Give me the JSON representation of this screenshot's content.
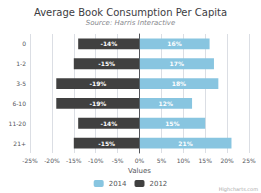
{
  "chart_data": {
    "type": "bar",
    "orientation": "horizontal",
    "title": "Average Book Consumption Per Capita",
    "subtitle": "Source: Harris Interactive",
    "xlabel": "Values",
    "annotation": "Highcharts.com",
    "categories": [
      "0",
      "1-2",
      "3-5",
      "6-10",
      "11-20",
      "21+"
    ],
    "series": [
      {
        "name": "2014",
        "color": "#88c5e0",
        "values": [
          16,
          17,
          18,
          12,
          15,
          21
        ],
        "value_labels": [
          "16%",
          "17%",
          "18%",
          "12%",
          "15%",
          "21%"
        ]
      },
      {
        "name": "2012",
        "color": "#404040",
        "values": [
          -14,
          -15,
          -19,
          -19,
          -14,
          -15
        ],
        "value_labels": [
          "-14%",
          "-15%",
          "-19%",
          "-19%",
          "-14%",
          "-15%"
        ]
      }
    ],
    "xlim": [
      -25,
      25
    ],
    "xticks": [
      {
        "value": -25,
        "label": "-25%"
      },
      {
        "value": -20,
        "label": "-20%"
      },
      {
        "value": -15,
        "label": "-15%"
      },
      {
        "value": -10,
        "label": "-10%"
      },
      {
        "value": -5,
        "label": "-5%"
      },
      {
        "value": 0,
        "label": "0%"
      },
      {
        "value": 5,
        "label": "5%"
      },
      {
        "value": 10,
        "label": "10%"
      },
      {
        "value": 15,
        "label": "15%"
      },
      {
        "value": 20,
        "label": "20%"
      },
      {
        "value": 25,
        "label": "25%"
      }
    ],
    "grid": true,
    "legend": "bottom",
    "data_labels": true
  }
}
